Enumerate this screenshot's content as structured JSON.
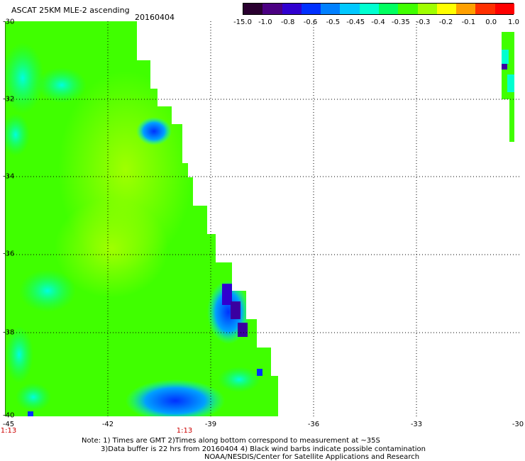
{
  "header": {
    "title": "ASCAT 25KM MLE-2 ascending",
    "date": "20160404"
  },
  "colorbar": {
    "ticks": [
      "-15.0",
      "-1.0",
      "-0.8",
      "-0.6",
      "-0.5",
      "-0.45",
      "-0.4",
      "-0.35",
      "-0.3",
      "-0.2",
      "-0.1",
      "0.0",
      "1.0"
    ],
    "colors": [
      "#2a0030",
      "#4b0082",
      "#3000d0",
      "#0030ff",
      "#0080ff",
      "#00c8ff",
      "#00ffd0",
      "#00ff60",
      "#40ff00",
      "#a0ff00",
      "#ffff00",
      "#ffa000",
      "#ff3000",
      "#ff0000"
    ]
  },
  "map": {
    "lat_labels": [
      "-30",
      "-32",
      "-34",
      "-36",
      "-38",
      "-40"
    ],
    "lon_labels": [
      "-45",
      "-42",
      "-39",
      "-36",
      "-33",
      "-30"
    ],
    "time_labels": [
      "1:13",
      "1:13"
    ]
  },
  "notes": {
    "line1": "Note: 1) Times are GMT 2)Times along bottom correspond to measurement at ~35S",
    "line2": "3)Data buffer is 22 hrs from 20160404 4) Black wind barbs indicate possible contamination",
    "line3": "NOAA/NESDIS/Center for Satellite Applications and Research"
  }
}
